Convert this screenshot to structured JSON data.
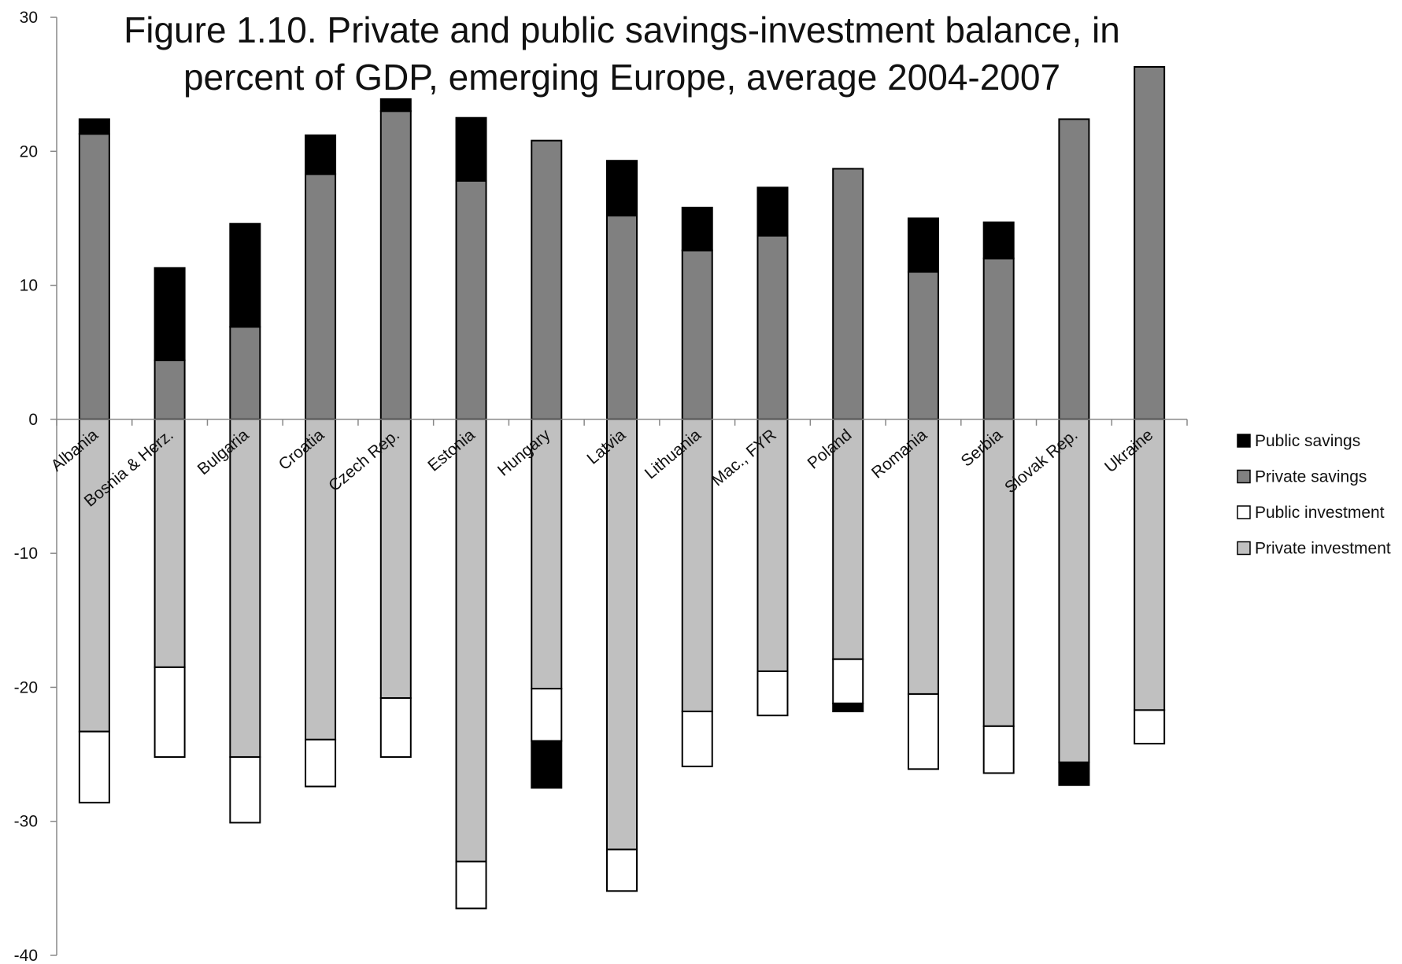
{
  "chart_data": {
    "type": "bar",
    "stacked": true,
    "title": "Figure 1.10. Private and public savings-investment balance, in percent of GDP, emerging Europe, average 2004-2007",
    "xlabel": "",
    "ylabel": "",
    "ylim": [
      -40,
      30
    ],
    "yticks": [
      30,
      20,
      10,
      0,
      -10,
      -20,
      -30,
      -40
    ],
    "grid": false,
    "legend_position": "right",
    "categories": [
      "Albania",
      "Bosnia & Herz.",
      "Bulgaria",
      "Croatia",
      "Czech Rep.",
      "Estonia",
      "Hungary",
      "Latvia",
      "Lithuania",
      "Mac., FYR",
      "Poland",
      "Romania",
      "Serbia",
      "Slovak Rep.",
      "Ukraine"
    ],
    "series": [
      {
        "name": "Public savings",
        "color": "#000000",
        "values": [
          1.1,
          6.9,
          7.7,
          2.9,
          0.9,
          4.7,
          -3.5,
          4.1,
          3.2,
          3.6,
          -0.6,
          4.0,
          2.7,
          -1.7,
          0.0
        ]
      },
      {
        "name": "Private savings",
        "color": "#808080",
        "values": [
          21.3,
          4.4,
          6.9,
          18.3,
          23.0,
          17.8,
          20.8,
          15.2,
          12.6,
          13.7,
          18.7,
          11.0,
          12.0,
          22.4,
          26.3
        ]
      },
      {
        "name": "Public investment",
        "color": "#ffffff",
        "values": [
          -5.3,
          -6.7,
          -4.9,
          -3.5,
          -4.4,
          -3.5,
          -3.9,
          -3.1,
          -4.1,
          -3.3,
          -3.3,
          -5.6,
          -3.5,
          0.0,
          -2.5
        ]
      },
      {
        "name": "Private investment",
        "color": "#c0c0c0",
        "values": [
          -23.3,
          -18.5,
          -25.2,
          -23.9,
          -20.8,
          -33.0,
          -20.1,
          -32.1,
          -21.8,
          -18.8,
          -17.9,
          -20.5,
          -22.9,
          -25.6,
          -21.7
        ]
      }
    ]
  }
}
